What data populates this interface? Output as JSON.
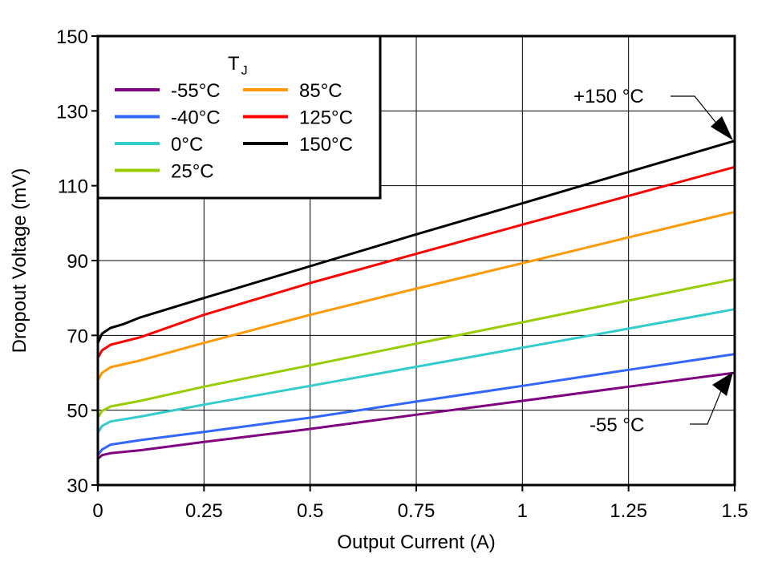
{
  "chart_data": {
    "type": "line",
    "title": "",
    "xlabel": "Output Current (A)",
    "ylabel": "Dropout Voltage (mV)",
    "xlim": [
      0,
      1.5
    ],
    "ylim": [
      30,
      150
    ],
    "grid": true,
    "xticks": [
      0,
      0.25,
      0.5,
      0.75,
      1,
      1.25,
      1.5
    ],
    "xtick_labels": [
      "0",
      "0.25",
      "0.5",
      "0.75",
      "1",
      "1.25",
      "1.5"
    ],
    "yticks": [
      30,
      50,
      70,
      90,
      110,
      130,
      150
    ],
    "ytick_labels": [
      "30",
      "50",
      "70",
      "90",
      "110",
      "130",
      "150"
    ],
    "legend": {
      "title": "T",
      "title_sub": "J",
      "placement": "top-left"
    },
    "series": [
      {
        "name": "-55°C",
        "color": "#800080",
        "x": [
          0,
          0.01,
          0.03,
          0.1,
          0.25,
          0.5,
          0.75,
          1.0,
          1.25,
          1.5
        ],
        "y": [
          37,
          38,
          38.5,
          39.3,
          41.5,
          45,
          48.8,
          52.5,
          56.3,
          60
        ]
      },
      {
        "name": "-40°C",
        "color": "#3366FF",
        "x": [
          0,
          0.01,
          0.03,
          0.1,
          0.25,
          0.5,
          0.75,
          1.0,
          1.25,
          1.5
        ],
        "y": [
          38,
          39.5,
          40.8,
          42,
          44.2,
          48,
          52.3,
          56.5,
          60.8,
          65
        ]
      },
      {
        "name": "0°C",
        "color": "#33CCCC",
        "x": [
          0,
          0.01,
          0.03,
          0.1,
          0.25,
          0.5,
          0.75,
          1.0,
          1.25,
          1.5
        ],
        "y": [
          44,
          45.8,
          47,
          48.3,
          51.5,
          56.5,
          61.6,
          66.7,
          71.8,
          77
        ]
      },
      {
        "name": "25°C",
        "color": "#99CC00",
        "x": [
          0,
          0.01,
          0.03,
          0.1,
          0.25,
          0.5,
          0.75,
          1.0,
          1.25,
          1.5
        ],
        "y": [
          48,
          49.8,
          51,
          52.5,
          56.3,
          62,
          67.8,
          73.5,
          79.3,
          85
        ]
      },
      {
        "name": "85°C",
        "color": "#FF9900",
        "x": [
          0,
          0.01,
          0.03,
          0.1,
          0.25,
          0.5,
          0.75,
          1.0,
          1.25,
          1.5
        ],
        "y": [
          58,
          60,
          61.5,
          63.3,
          68,
          75.5,
          82.5,
          89.3,
          96.2,
          103
        ]
      },
      {
        "name": "125°C",
        "color": "#FF0000",
        "x": [
          0,
          0.01,
          0.03,
          0.1,
          0.25,
          0.5,
          0.75,
          1.0,
          1.25,
          1.5
        ],
        "y": [
          64,
          66,
          67.5,
          69.5,
          75.5,
          84,
          91.8,
          99.6,
          107.3,
          115
        ]
      },
      {
        "name": "150°C",
        "color": "#000000",
        "x": [
          0,
          0.01,
          0.03,
          0.06,
          0.1,
          0.25,
          0.5,
          0.75,
          1.0,
          1.25,
          1.5
        ],
        "y": [
          68,
          70.5,
          72,
          73,
          74.8,
          80,
          88.5,
          97,
          105.3,
          113.7,
          122
        ]
      }
    ],
    "annotations": [
      {
        "text": "+150 °C",
        "target_x": 1.5,
        "target_y": 122
      },
      {
        "text": "-55 °C",
        "target_x": 1.5,
        "target_y": 60
      }
    ]
  }
}
